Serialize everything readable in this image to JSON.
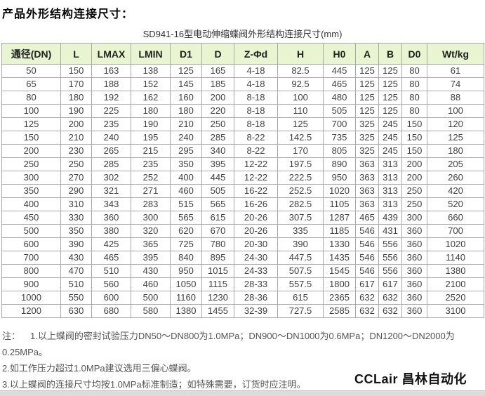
{
  "page_title": "产品外形结构连接尺寸：",
  "table": {
    "caption": "SD941-16型电动伸缩蝶阀外形结构连接尺寸(mm)",
    "headers": [
      "通径(DN)",
      "L",
      "LMAX",
      "LMIN",
      "D1",
      "D",
      "Z-Φd",
      "H",
      "H0",
      "A",
      "B",
      "D0",
      "Wt/kg"
    ],
    "rows": [
      [
        "50",
        "150",
        "163",
        "138",
        "125",
        "165",
        "4-18",
        "82.5",
        "445",
        "125",
        "125",
        "80",
        "61"
      ],
      [
        "65",
        "170",
        "188",
        "152",
        "145",
        "185",
        "4-18",
        "92.5",
        "465",
        "125",
        "125",
        "80",
        "74"
      ],
      [
        "80",
        "180",
        "192",
        "162",
        "160",
        "200",
        "8-18",
        "100",
        "480",
        "125",
        "125",
        "80",
        "88"
      ],
      [
        "100",
        "190",
        "225",
        "180",
        "180",
        "220",
        "8-18",
        "110",
        "505",
        "125",
        "125",
        "80",
        "100"
      ],
      [
        "125",
        "200",
        "235",
        "190",
        "210",
        "250",
        "8-18",
        "125",
        "700",
        "325",
        "245",
        "150",
        "120"
      ],
      [
        "150",
        "210",
        "240",
        "195",
        "240",
        "285",
        "8-22",
        "142.5",
        "735",
        "325",
        "245",
        "150",
        "125"
      ],
      [
        "200",
        "230",
        "265",
        "215",
        "295",
        "340",
        "8-22",
        "170",
        "805",
        "325",
        "245",
        "150",
        "180"
      ],
      [
        "250",
        "250",
        "285",
        "235",
        "350",
        "395",
        "12-22",
        "197.5",
        "890",
        "363",
        "313",
        "200",
        "205"
      ],
      [
        "300",
        "270",
        "302",
        "252",
        "400",
        "445",
        "12-22",
        "222.5",
        "950",
        "363",
        "313",
        "200",
        "260"
      ],
      [
        "350",
        "290",
        "321",
        "271",
        "460",
        "505",
        "16-22",
        "252.5",
        "1020",
        "363",
        "313",
        "250",
        "420"
      ],
      [
        "400",
        "310",
        "343",
        "283",
        "515",
        "565",
        "16-26",
        "282.5",
        "1105",
        "363",
        "313",
        "250",
        "520"
      ],
      [
        "450",
        "330",
        "360",
        "300",
        "565",
        "615",
        "20-26",
        "307.5",
        "1287",
        "465",
        "439",
        "300",
        "660"
      ],
      [
        "500",
        "350",
        "380",
        "320",
        "620",
        "670",
        "20-26",
        "335",
        "1185",
        "546",
        "431",
        "360",
        "700"
      ],
      [
        "600",
        "390",
        "425",
        "365",
        "725",
        "780",
        "20-30",
        "390",
        "1330",
        "546",
        "556",
        "360",
        "1020"
      ],
      [
        "700",
        "430",
        "465",
        "395",
        "840",
        "895",
        "24-30",
        "447.5",
        "1435",
        "546",
        "556",
        "360",
        "1140"
      ],
      [
        "800",
        "470",
        "510",
        "430",
        "950",
        "1015",
        "24-33",
        "507.5",
        "1545",
        "546",
        "556",
        "360",
        "1380"
      ],
      [
        "900",
        "510",
        "560",
        "460",
        "1050",
        "1115",
        "28-33",
        "557.5",
        "1800",
        "617",
        "617",
        "360",
        "2100"
      ],
      [
        "1000",
        "550",
        "600",
        "500",
        "1160",
        "1230",
        "28-36",
        "615",
        "2365",
        "632",
        "632",
        "360",
        "2520"
      ],
      [
        "1200",
        "630",
        "680",
        "580",
        "1380",
        "1455",
        "32-39",
        "727.5",
        "2585",
        "632",
        "632",
        "360",
        "3100"
      ]
    ]
  },
  "notes": {
    "label": "注：",
    "items": [
      "1.以上蝶阀的密封试验压力DN50～DN800为1.0MPa；DN900～DN1000为0.6MPa；DN1200～DN2000为0.25MPa。",
      "2.如工作压力超过1.0MPa建议选用三偏心蝶阀。",
      "3.以上蝶阀的连接尺寸均按1.0MPa标准制造；如特殊需要，订货时应注明。"
    ]
  },
  "brand": "CCLair 昌林自动化",
  "colors": {
    "header_bg": "#e8f5d0",
    "border": "#a8a8a8",
    "cell_text": "#404040",
    "note_text": "#555555"
  }
}
